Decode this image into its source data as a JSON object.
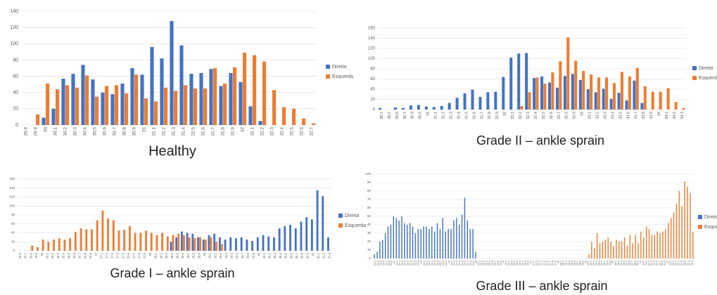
{
  "chart_data": [
    {
      "type": "bar",
      "title": "Healthy",
      "legend": "right",
      "grid": true,
      "categories": [
        "29.8",
        "29.9",
        "30",
        "30.1",
        "30.2",
        "30.3",
        "30.4",
        "30.5",
        "30.6",
        "30.7",
        "30.8",
        "30.9",
        "31",
        "31.1",
        "31.2",
        "31.3",
        "31.4",
        "31.5",
        "31.6",
        "31.7",
        "31.8",
        "31.9",
        "32",
        "32.1",
        "32.2",
        "32.3",
        "32.4",
        "32.5",
        "32.6",
        "32.7"
      ],
      "series": [
        {
          "name": "Direita",
          "color": "#4472c4",
          "values": [
            0,
            0,
            9,
            20,
            57,
            63,
            74,
            56,
            40,
            38,
            51,
            70,
            62,
            96,
            82,
            128,
            98,
            63,
            64,
            69,
            48,
            64,
            53,
            23,
            5,
            0,
            0,
            0,
            0,
            0
          ]
        },
        {
          "name": "Esquerda",
          "color": "#ed7d31",
          "values": [
            0,
            13,
            51,
            44,
            49,
            46,
            61,
            35,
            48,
            49,
            39,
            62,
            33,
            29,
            46,
            42,
            49,
            45,
            45,
            70,
            51,
            71,
            89,
            86,
            78,
            43,
            22,
            20,
            8,
            2
          ]
        }
      ],
      "ylim": [
        0,
        140
      ],
      "yticks": [
        0,
        20,
        40,
        60,
        80,
        100,
        120,
        140
      ]
    },
    {
      "type": "bar",
      "title": "Grade II – ankle sprain",
      "legend": "right",
      "grid": true,
      "categories": [
        "30.1",
        "30.5",
        "30.6",
        "30.7",
        "30.8",
        "30.9",
        "31",
        "31.1",
        "31.2",
        "31.3",
        "31.4",
        "31.5",
        "31.6",
        "31.7",
        "31.8",
        "31.9",
        "32",
        "32.1",
        "32.2",
        "32.3",
        "32.4",
        "32.5",
        "32.6",
        "32.7",
        "32.8",
        "32.9",
        "33",
        "33.1",
        "33.2",
        "33.3",
        "33.4",
        "33.5",
        "33.6",
        "33.7",
        "33.8",
        "33.9",
        "34",
        "34.1",
        "34.2",
        "34.3"
      ],
      "series": [
        {
          "name": "Direita",
          "color": "#4472c4",
          "values": [
            3,
            0,
            4,
            3,
            8,
            9,
            6,
            5,
            7,
            13,
            23,
            32,
            39,
            25,
            34,
            35,
            64,
            102,
            110,
            111,
            62,
            65,
            53,
            43,
            66,
            70,
            58,
            40,
            34,
            41,
            21,
            33,
            18,
            57,
            13,
            0,
            0,
            0,
            0,
            0
          ]
        },
        {
          "name": "Esquerda",
          "color": "#ed7d31",
          "values": [
            0,
            0,
            0,
            0,
            0,
            0,
            0,
            0,
            0,
            0,
            0,
            0,
            0,
            0,
            0,
            0,
            0,
            0,
            7,
            34,
            63,
            51,
            73,
            95,
            142,
            96,
            76,
            69,
            63,
            63,
            52,
            74,
            65,
            82,
            46,
            35,
            35,
            42,
            15,
            3
          ]
        }
      ],
      "ylim": [
        0,
        160
      ],
      "yticks": [
        0,
        20,
        40,
        60,
        80,
        100,
        120,
        140,
        160
      ]
    },
    {
      "type": "bar",
      "title": "Grade I – ankle sprain",
      "legend": "right",
      "grid": true,
      "categories": [
        "25.6",
        "25.7",
        "25.8",
        "25.9",
        "26",
        "26.1",
        "26.2",
        "26.3",
        "26.4",
        "26.5",
        "26.6",
        "26.7",
        "26.8",
        "26.9",
        "27",
        "27.1",
        "27.2",
        "27.3",
        "27.4",
        "27.5",
        "27.6",
        "27.7",
        "27.8",
        "27.9",
        "28",
        "28.1",
        "28.2",
        "28.3",
        "28.4",
        "28.5",
        "28.6",
        "28.7",
        "28.8",
        "28.9",
        "29",
        "29.1",
        "29.2",
        "29.3",
        "29.4",
        "29.5",
        "29.6",
        "29.7",
        "29.8",
        "29.9",
        "30",
        "30.1",
        "30.2",
        "30.3",
        "30.4",
        "30.5",
        "30.6",
        "30.7",
        "30.8",
        "30.9",
        "31",
        "31.1",
        "31.2",
        "31.3"
      ],
      "series": [
        {
          "name": "Direita",
          "color": "#4472c4",
          "values": [
            0,
            0,
            0,
            0,
            0,
            0,
            0,
            0,
            0,
            0,
            0,
            0,
            0,
            0,
            0,
            0,
            0,
            0,
            0,
            0,
            0,
            0,
            0,
            0,
            0,
            0,
            0,
            0,
            20,
            30,
            43,
            40,
            38,
            30,
            25,
            35,
            38,
            30,
            25,
            30,
            28,
            30,
            25,
            22,
            30,
            35,
            32,
            30,
            50,
            55,
            58,
            50,
            65,
            75,
            70,
            135,
            122,
            30
          ]
        },
        {
          "name": "Esquerda",
          "color": "#ed7d31",
          "values": [
            0,
            0,
            12,
            8,
            25,
            20,
            25,
            28,
            25,
            28,
            42,
            50,
            48,
            48,
            68,
            90,
            72,
            68,
            45,
            47,
            55,
            40,
            40,
            45,
            40,
            35,
            40,
            32,
            35,
            38,
            35,
            30,
            28,
            30,
            25,
            30,
            20,
            15,
            0,
            0,
            0,
            0,
            0,
            0,
            0,
            0,
            0,
            0,
            0,
            0,
            0,
            0,
            0,
            0,
            0,
            0,
            0,
            0
          ]
        }
      ],
      "ylim": [
        0,
        160
      ],
      "yticks": [
        0,
        20,
        40,
        60,
        80,
        100,
        120,
        140,
        160
      ]
    },
    {
      "type": "bar",
      "title": "Grade III – ankle sprain",
      "legend": "right",
      "grid": true,
      "categories": [
        "21.3",
        "21.4",
        "21.5",
        "21.6",
        "21.7",
        "21.8",
        "21.9",
        "22",
        "22.1",
        "22.2",
        "22.3",
        "22.4",
        "22.5",
        "22.6",
        "22.7",
        "22.8",
        "22.9",
        "23",
        "23.1",
        "23.2",
        "23.3",
        "23.4",
        "23.5",
        "23.6",
        "23.7",
        "23.8",
        "23.9",
        "24",
        "24.1",
        "24.2",
        "24.3",
        "24.4",
        "24.5",
        "24.6",
        "24.7",
        "24.8",
        "24.9",
        "25",
        "25.1",
        "25.2",
        "25.3",
        "25.4",
        "25.5",
        "25.6",
        "25.7",
        "25.8",
        "25.9",
        "26",
        "26.1",
        "26.2",
        "26.3",
        "26.4",
        "26.5",
        "26.6",
        "26.7",
        "26.8",
        "26.9",
        "27",
        "27.1",
        "27.2",
        "27.3",
        "27.4",
        "27.5",
        "27.6",
        "27.7",
        "27.8",
        "27.9",
        "28",
        "28.1",
        "28.2",
        "28.3",
        "28.4",
        "28.5",
        "28.6",
        "28.7",
        "28.8",
        "28.9",
        "29",
        "29.1",
        "29.2",
        "29.3",
        "29.4",
        "29.5",
        "29.6",
        "29.7",
        "29.8",
        "29.9",
        "30",
        "30.1",
        "30.2",
        "30.3",
        "30.4",
        "30.5",
        "30.6",
        "30.7",
        "30.8",
        "30.9",
        "31",
        "31.1",
        "31.2",
        "31.3",
        "31.4",
        "31.5",
        "31.6",
        "31.7",
        "31.8",
        "31.9",
        "32",
        "32.1",
        "32.2",
        "32.3",
        "32.4",
        "32.5",
        "32.6",
        "32.7",
        "32.8",
        "32.9"
      ],
      "series": [
        {
          "name": "Direita",
          "color": "#4472c4",
          "values": [
            5,
            8,
            20,
            22,
            30,
            38,
            40,
            50,
            48,
            45,
            50,
            42,
            40,
            42,
            38,
            30,
            35,
            35,
            38,
            38,
            35,
            38,
            32,
            42,
            35,
            48,
            32,
            35,
            35,
            45,
            48,
            40,
            52,
            72,
            45,
            35,
            35,
            8,
            0,
            0,
            0,
            0,
            0,
            0,
            0,
            0,
            0,
            0,
            0,
            0,
            0,
            0,
            0,
            0,
            0,
            0,
            0,
            0,
            0,
            0,
            0,
            0,
            0,
            0,
            0,
            0,
            0,
            0,
            0,
            0,
            0,
            0,
            0,
            0,
            0,
            0,
            0,
            0,
            0,
            0,
            0,
            0,
            0,
            0,
            0,
            0,
            0,
            0,
            0,
            0,
            0,
            0,
            0,
            0,
            0,
            0,
            0,
            0,
            0,
            0,
            0,
            0,
            0,
            0,
            0,
            0,
            0,
            0,
            0,
            0,
            0,
            0,
            0,
            0,
            0,
            0,
            0
          ]
        },
        {
          "name": "Esquerda",
          "color": "#ed7d31",
          "values": [
            0,
            0,
            0,
            0,
            0,
            0,
            0,
            0,
            0,
            0,
            0,
            0,
            0,
            0,
            0,
            0,
            0,
            0,
            0,
            0,
            0,
            0,
            0,
            0,
            0,
            0,
            0,
            0,
            0,
            0,
            0,
            0,
            0,
            0,
            0,
            0,
            0,
            0,
            0,
            0,
            0,
            0,
            0,
            0,
            0,
            0,
            0,
            0,
            0,
            0,
            0,
            0,
            0,
            0,
            0,
            0,
            0,
            0,
            0,
            0,
            0,
            0,
            0,
            0,
            0,
            0,
            0,
            0,
            0,
            0,
            0,
            0,
            0,
            0,
            0,
            0,
            0,
            0,
            5,
            20,
            12,
            30,
            18,
            20,
            22,
            25,
            20,
            15,
            22,
            20,
            20,
            25,
            15,
            28,
            18,
            28,
            18,
            32,
            25,
            38,
            35,
            28,
            28,
            32,
            30,
            32,
            35,
            42,
            48,
            55,
            65,
            80,
            62,
            91,
            85,
            78,
            32
          ]
        }
      ],
      "ylim": [
        0,
        100
      ],
      "yticks": [
        0,
        10,
        20,
        30,
        40,
        50,
        60,
        70,
        80,
        90,
        100
      ]
    }
  ]
}
